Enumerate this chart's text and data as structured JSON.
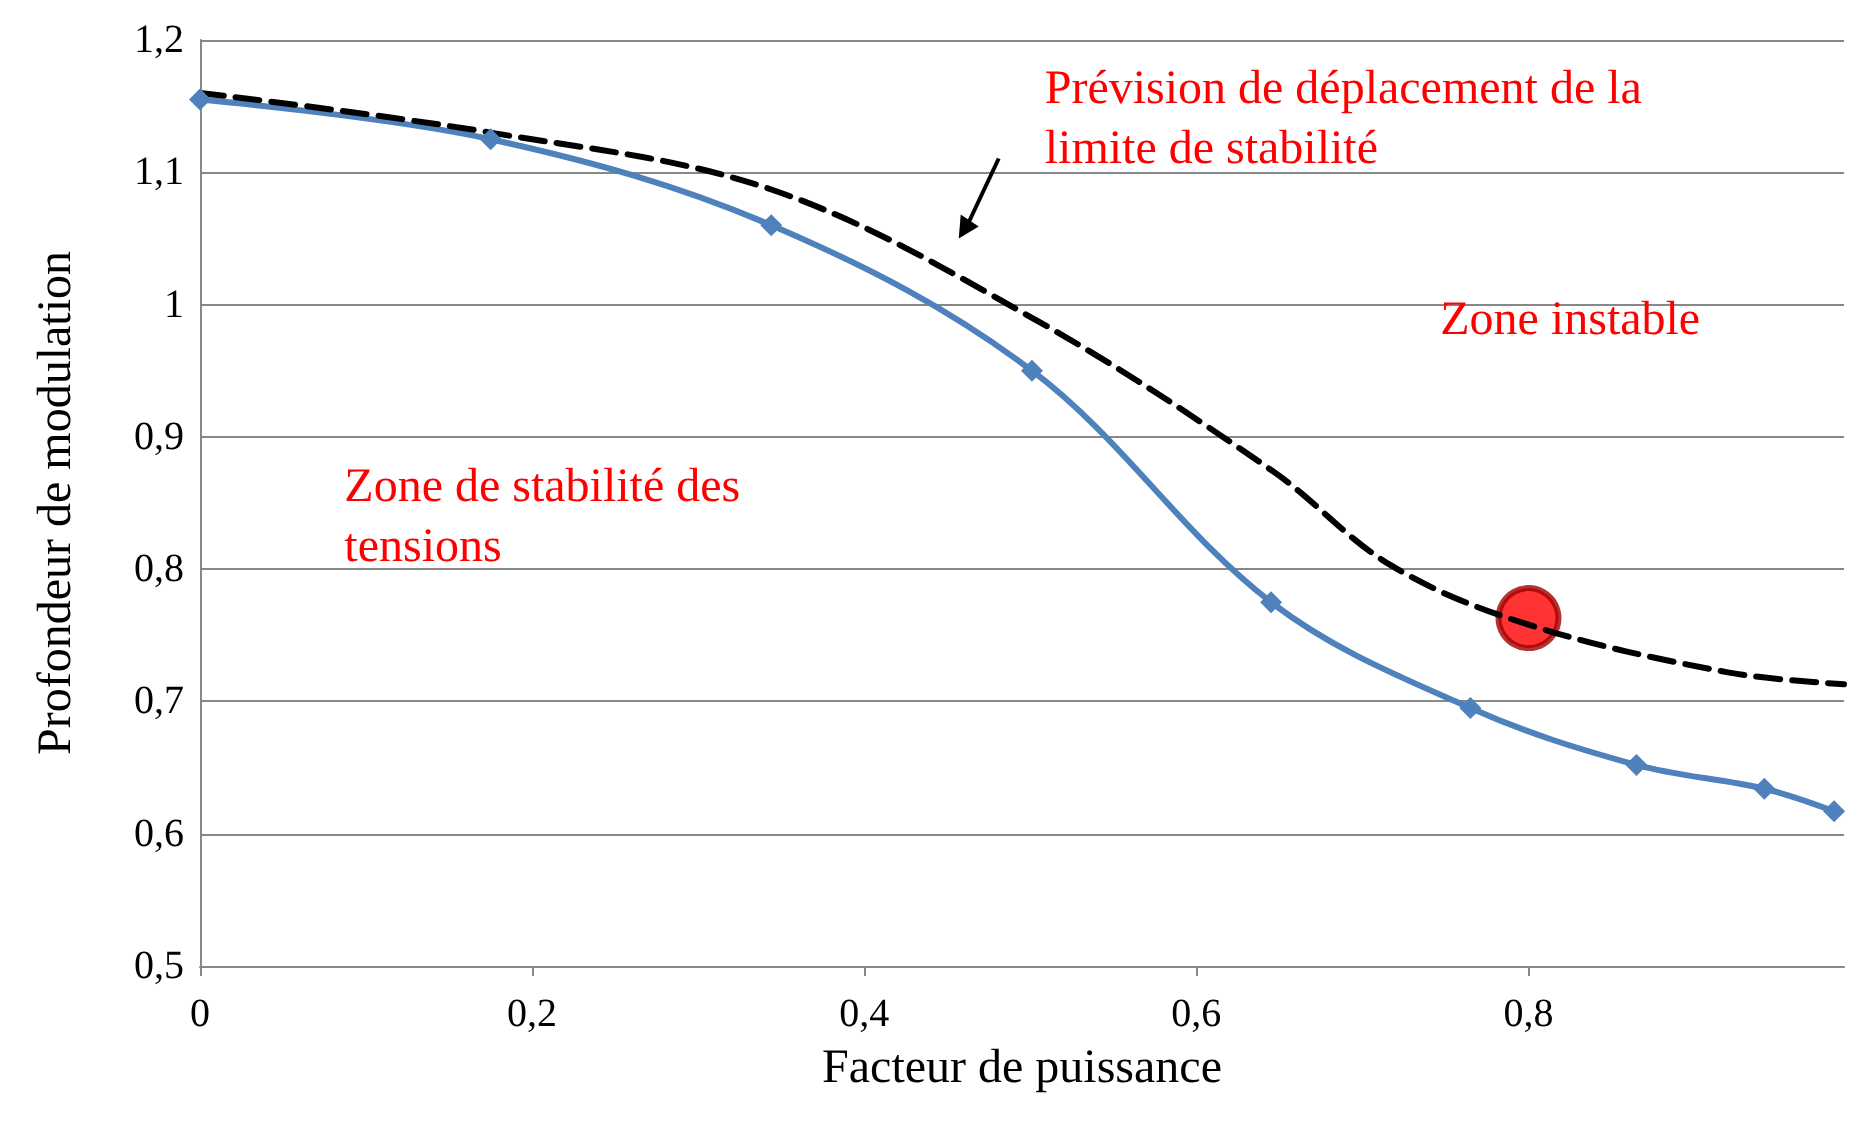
{
  "chart_data": {
    "type": "line",
    "xlabel": "Facteur de puissance",
    "ylabel": "Profondeur de modulation",
    "xlim": [
      0,
      0.99
    ],
    "xticks": [
      {
        "value": 0,
        "label": "0"
      },
      {
        "value": 0.2,
        "label": "0,2"
      },
      {
        "value": 0.4,
        "label": "0,4"
      },
      {
        "value": 0.6,
        "label": "0,6"
      },
      {
        "value": 0.8,
        "label": "0,8"
      }
    ],
    "ylim": [
      0.5,
      1.2
    ],
    "yticks": [
      {
        "value": 0.5,
        "label": "0,5"
      },
      {
        "value": 0.6,
        "label": "0,6"
      },
      {
        "value": 0.7,
        "label": "0,7"
      },
      {
        "value": 0.8,
        "label": "0,8"
      },
      {
        "value": 0.9,
        "label": "0,9"
      },
      {
        "value": 1,
        "label": "1"
      },
      {
        "value": 1.1,
        "label": "1,1"
      },
      {
        "value": 1.2,
        "label": "1,2"
      }
    ],
    "grid": "y",
    "series": [
      {
        "color": "#4f81bd",
        "marker": "diamond",
        "line_style": "solid",
        "x": [
          0,
          0.175,
          0.344,
          0.501,
          0.645,
          0.765,
          0.865,
          0.942,
          0.984
        ],
        "values": [
          1.155,
          1.125,
          1.06,
          0.95,
          0.775,
          0.695,
          0.652,
          0.634,
          0.617
        ]
      },
      {
        "color": "#000000",
        "marker": "none",
        "line_style": "dashed",
        "x": [
          0,
          0.175,
          0.344,
          0.501,
          0.645,
          0.717,
          0.8,
          0.92,
          0.99
        ],
        "values": [
          1.16,
          1.13,
          1.087,
          0.99,
          0.875,
          0.803,
          0.758,
          0.722,
          0.713
        ]
      },
      {
        "type": "scatter",
        "color": "#ff0000",
        "marker": "circle",
        "x": [
          0.8
        ],
        "values": [
          0.763
        ]
      }
    ],
    "annotations": [
      "Prévision de déplacement de la limite de stabilité",
      "Zone instable",
      "Zone de stabilité des tensions"
    ]
  }
}
